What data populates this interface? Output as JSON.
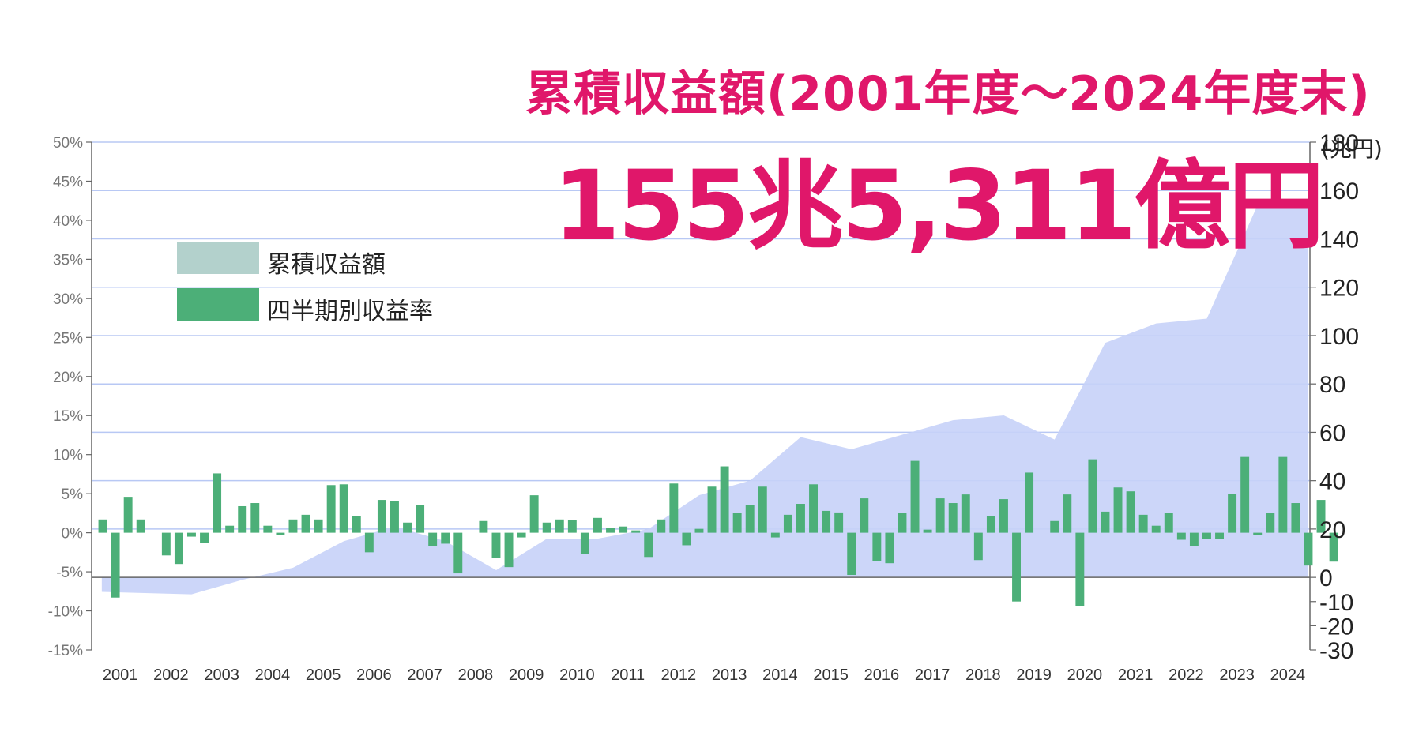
{
  "header": {
    "title": "累積収益額(2001年度〜2024年度末)",
    "subtitle": "155兆5,311億円"
  },
  "legend": [
    {
      "label": "累積収益額",
      "color": "#b3d1cc"
    },
    {
      "label": "四半期別収益率",
      "color": "#4caf78"
    }
  ],
  "colors": {
    "area": "#c6d2f8",
    "bar": "#4caf78",
    "grid": "#b8c8f4",
    "axis": "#666666",
    "title": "#e0176a"
  },
  "chart_data": {
    "type": "bar",
    "title": "累積収益額(2001年度〜2024年度末)",
    "subtitle": "155兆5,311億円",
    "right_axis_unit": "(兆円)",
    "years": [
      "2001",
      "2002",
      "2003",
      "2004",
      "2005",
      "2006",
      "2007",
      "2008",
      "2009",
      "2010",
      "2011",
      "2012",
      "2013",
      "2014",
      "2015",
      "2016",
      "2017",
      "2018",
      "2019",
      "2020",
      "2021",
      "2022",
      "2023",
      "2024"
    ],
    "left_axis": {
      "range": [
        -15,
        50
      ],
      "tick_labels": [
        "50%",
        "45%",
        "40%",
        "35%",
        "30%",
        "25%",
        "20%",
        "15%",
        "10%",
        "5%",
        "0%",
        "-5%",
        "-10%",
        "-15%"
      ]
    },
    "right_axis": {
      "range": [
        -30,
        180
      ],
      "tick_labels": [
        "180",
        "160",
        "140",
        "120",
        "100",
        "80",
        "60",
        "40",
        "20",
        "0",
        "-10",
        "-20",
        "-30"
      ]
    },
    "series": [
      {
        "name": "四半期別収益率",
        "type": "bar",
        "unit": "%",
        "values": [
          1.7,
          -8.3,
          4.6,
          1.7,
          0,
          -2.9,
          -4.0,
          -0.5,
          -1.3,
          7.6,
          0.9,
          3.4,
          3.8,
          0.9,
          -0.3,
          1.7,
          2.3,
          1.7,
          6.1,
          6.2,
          2.1,
          -2.5,
          4.2,
          4.1,
          1.3,
          3.6,
          -1.7,
          -1.4,
          -5.2,
          0,
          1.5,
          -3.2,
          -4.4,
          -0.6,
          4.8,
          1.3,
          1.7,
          1.6,
          -2.7,
          1.9,
          0.6,
          0.8,
          0.3,
          -3.1,
          1.7,
          6.3,
          -1.6,
          0.5,
          5.9,
          8.5,
          2.5,
          3.5,
          5.9,
          -0.6,
          2.3,
          3.7,
          6.2,
          2.8,
          2.6,
          -5.4,
          4.4,
          -3.6,
          -3.9,
          2.5,
          9.2,
          0.4,
          4.4,
          3.8,
          4.9,
          -3.5,
          2.1,
          4.3,
          -8.8,
          7.7,
          0,
          1.5,
          4.9,
          -9.4,
          9.4,
          2.7,
          5.8,
          5.3,
          2.3,
          0.9,
          2.5,
          -0.9,
          -1.7,
          -0.8,
          -0.8,
          5.0,
          9.7,
          -0.3,
          2.5,
          9.7,
          3.8,
          -4.2,
          4.2,
          -3.7
        ]
      },
      {
        "name": "累積収益額",
        "type": "area",
        "unit": "兆円",
        "x": [
          2001,
          2002,
          2003,
          2004,
          2005,
          2006,
          2007,
          2008,
          2009,
          2010,
          2011,
          2012,
          2013,
          2014,
          2015,
          2016,
          2017,
          2018,
          2019,
          2020,
          2021,
          2022,
          2023,
          2024
        ],
        "values": [
          -6,
          -7,
          -1,
          4,
          15,
          21,
          15,
          3,
          16,
          16,
          20,
          34,
          40,
          58,
          53,
          59,
          65,
          67,
          57,
          97,
          105,
          107,
          154,
          156
        ]
      }
    ],
    "grid": true,
    "legend_position": "top-left"
  }
}
